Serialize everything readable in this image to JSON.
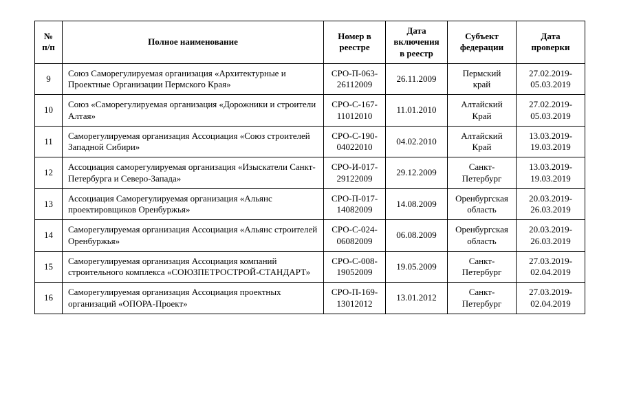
{
  "table": {
    "columns": {
      "num": "№ п/п",
      "name": "Полное наименование",
      "reg_no": "Номер в реестре",
      "incl_date": "Дата включения в реестр",
      "subject": "Субъект федерации",
      "check_date": "Дата проверки"
    },
    "rows": [
      {
        "num": "9",
        "name": "Союз Саморегулируемая организация «Архитектурные и Проектные Организации Пермского Края»",
        "reg_no": "СРО-П-063-26112009",
        "incl_date": "26.11.2009",
        "subject": "Пермский край",
        "check_date": "27.02.2019-05.03.2019"
      },
      {
        "num": "10",
        "name": "Союз «Саморегулируемая организация «Дорожники и строители Алтая»",
        "reg_no": "СРО-С-167-11012010",
        "incl_date": "11.01.2010",
        "subject": "Алтайский Край",
        "check_date": "27.02.2019-05.03.2019"
      },
      {
        "num": "11",
        "name": "Саморегулируемая организация Ассоциация «Союз строителей Западной Сибири»",
        "reg_no": "СРО-С-190-04022010",
        "incl_date": "04.02.2010",
        "subject": "Алтайский Край",
        "check_date": "13.03.2019-19.03.2019"
      },
      {
        "num": "12",
        "name": "Ассоциация саморегулируемая организация «Изыскатели Санкт-Петербурга и Северо-Запада»",
        "reg_no": "СРО-И-017-29122009",
        "incl_date": "29.12.2009",
        "subject": "Санкт-Петербург",
        "check_date": "13.03.2019-19.03.2019"
      },
      {
        "num": "13",
        "name": "Ассоциация Саморегулируемая организация «Альянс проектировщиков Оренбуржья»",
        "reg_no": "СРО-П-017-14082009",
        "incl_date": "14.08.2009",
        "subject": "Оренбургская область",
        "check_date": "20.03.2019-26.03.2019"
      },
      {
        "num": "14",
        "name": "Саморегулируемая организация Ассоциация «Альянс строителей Оренбуржья»",
        "reg_no": "СРО-С-024-06082009",
        "incl_date": "06.08.2009",
        "subject": "Оренбургская область",
        "check_date": "20.03.2019-26.03.2019"
      },
      {
        "num": "15",
        "name": "Саморегулируемая организация Ассоциация компаний строительного комплекса «СОЮЗПЕТРОСТРОЙ-СТАНДАРТ»",
        "reg_no": "СРО-С-008-19052009",
        "incl_date": "19.05.2009",
        "subject": "Санкт-Петербург",
        "check_date": "27.03.2019-02.04.2019"
      },
      {
        "num": "16",
        "name": "Саморегулируемая организация Ассоциация проектных организаций «ОПОРА-Проект»",
        "reg_no": "СРО-П-169-13012012",
        "incl_date": "13.01.2012",
        "subject": "Санкт-Петербург",
        "check_date": "27.03.2019-02.04.2019"
      }
    ]
  }
}
